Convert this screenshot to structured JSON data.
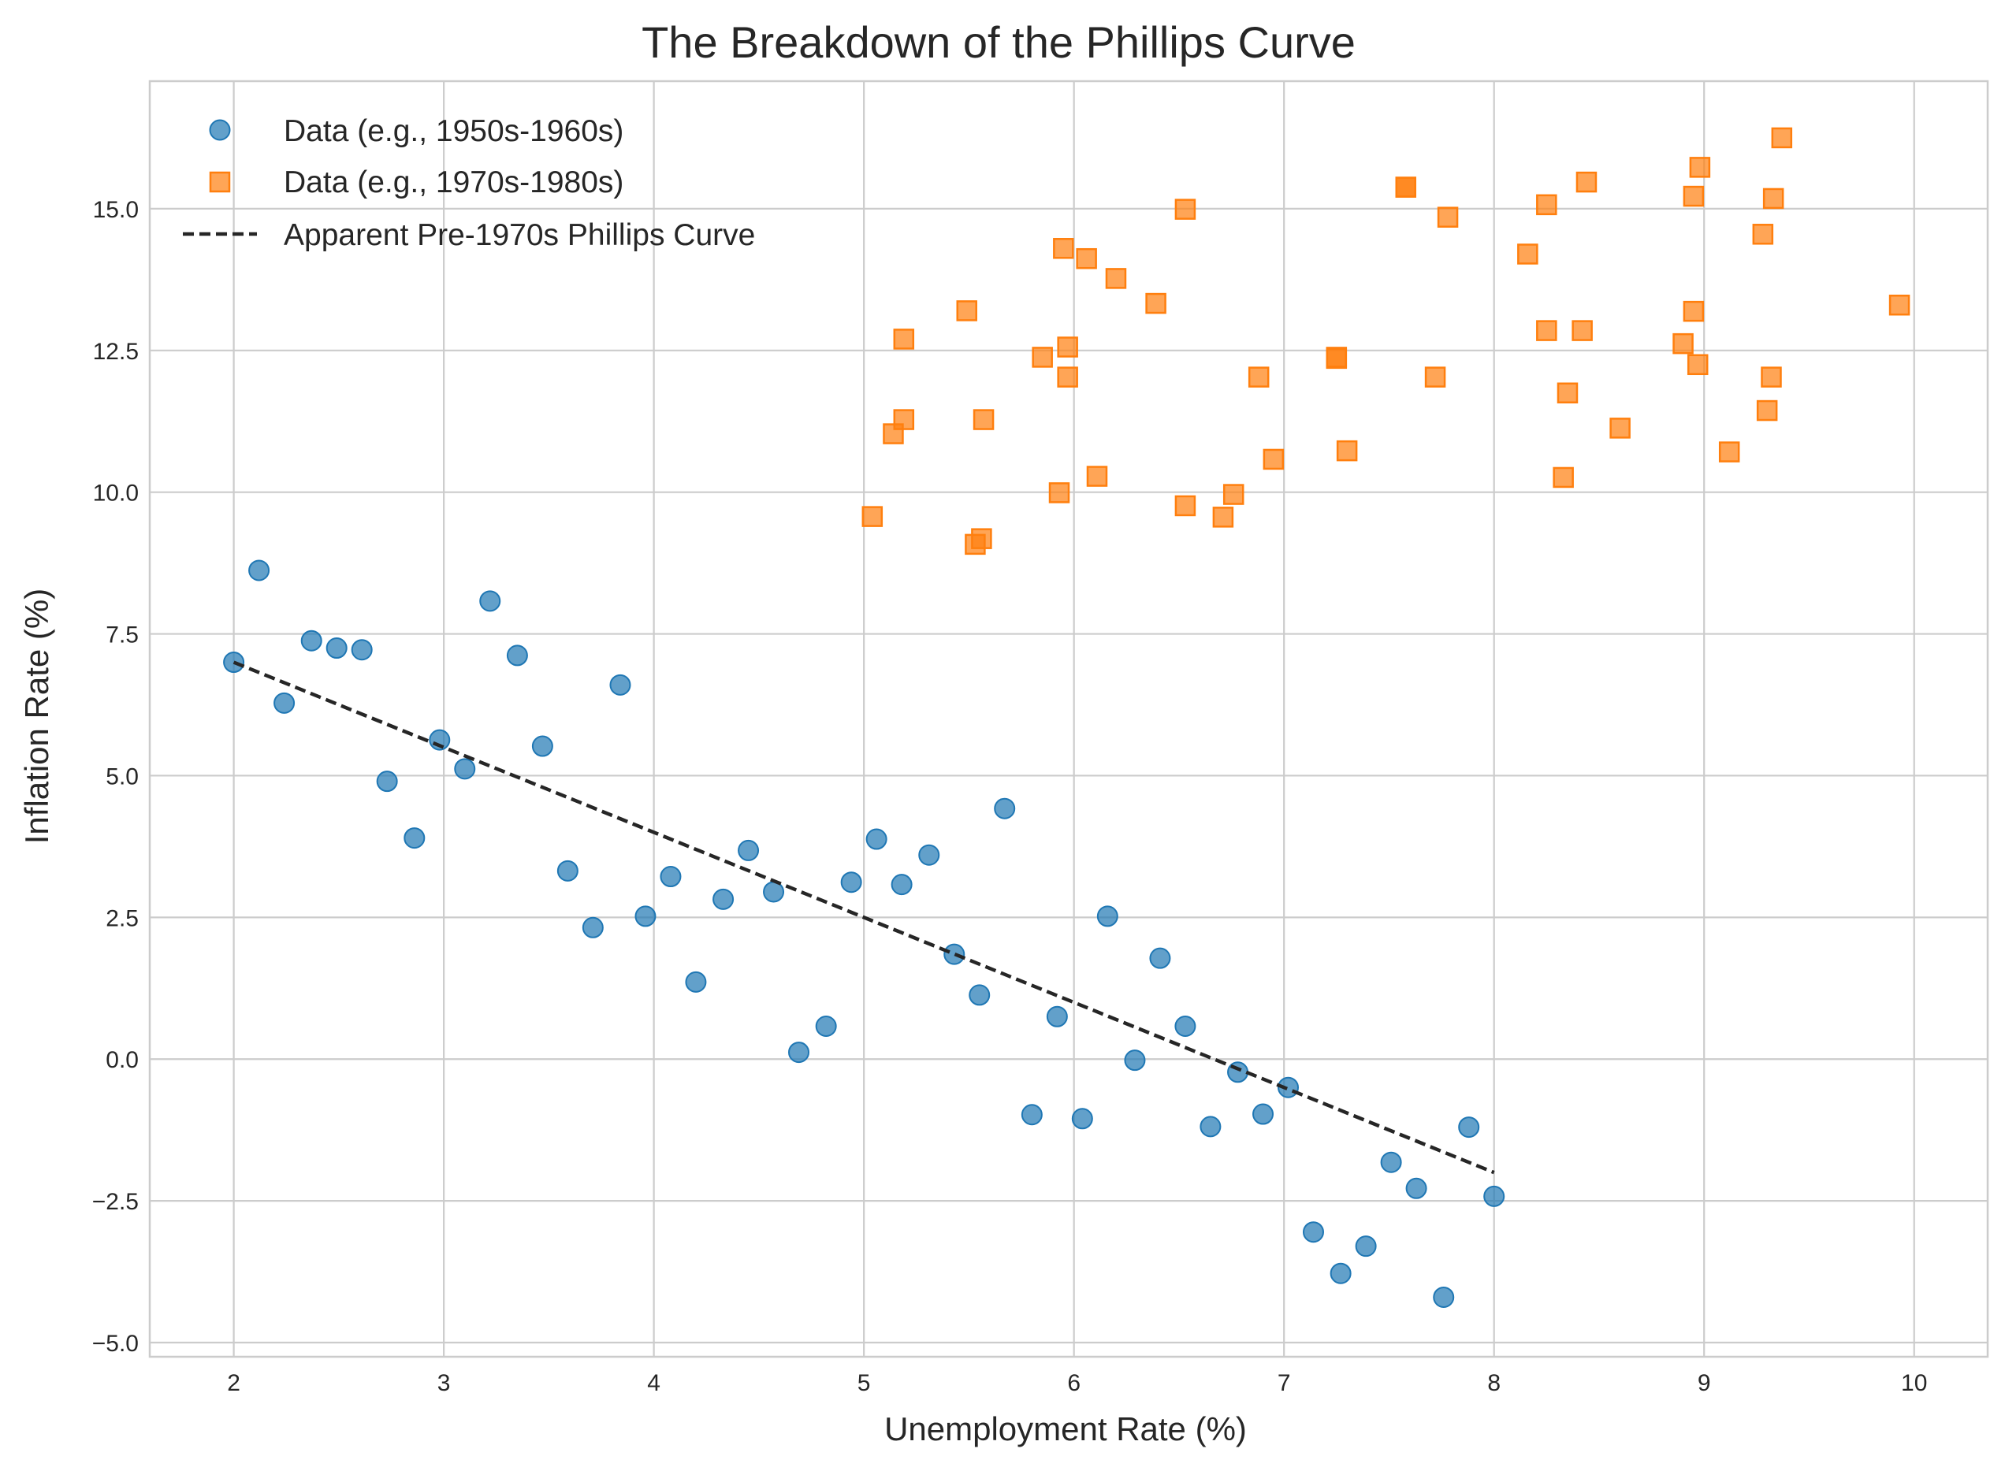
{
  "chart_data": {
    "type": "scatter",
    "title": "The Breakdown of the Phillips Curve",
    "xlabel": "Unemployment Rate (%)",
    "ylabel": "Inflation Rate (%)",
    "xlim": [
      1.6,
      10.35
    ],
    "ylim": [
      -5.25,
      17.25
    ],
    "xticks": [
      2,
      3,
      4,
      5,
      6,
      7,
      8,
      9,
      10
    ],
    "xtick_labels": [
      "2",
      "3",
      "4",
      "5",
      "6",
      "7",
      "8",
      "9",
      "10"
    ],
    "yticks": [
      -5,
      -2.5,
      0,
      2.5,
      5,
      7.5,
      10,
      12.5,
      15
    ],
    "ytick_labels": [
      "−5.0",
      "−2.5",
      "0.0",
      "2.5",
      "5.0",
      "7.5",
      "10.0",
      "12.5",
      "15.0"
    ],
    "grid": true,
    "legend_position": "upper-left",
    "series": [
      {
        "name": "Data (e.g., 1950s-1960s)",
        "marker": "circle",
        "color": "#1f77b4",
        "points": [
          [
            2.0,
            7.0
          ],
          [
            2.12,
            8.62
          ],
          [
            2.24,
            6.28
          ],
          [
            2.37,
            7.38
          ],
          [
            2.49,
            7.25
          ],
          [
            2.61,
            7.22
          ],
          [
            2.73,
            4.9
          ],
          [
            2.86,
            3.9
          ],
          [
            2.98,
            5.63
          ],
          [
            3.1,
            5.12
          ],
          [
            3.22,
            8.08
          ],
          [
            3.35,
            7.12
          ],
          [
            3.47,
            5.52
          ],
          [
            3.59,
            3.32
          ],
          [
            3.71,
            2.32
          ],
          [
            3.84,
            6.6
          ],
          [
            3.96,
            2.52
          ],
          [
            4.08,
            3.22
          ],
          [
            4.2,
            1.36
          ],
          [
            4.33,
            2.82
          ],
          [
            4.45,
            3.68
          ],
          [
            4.57,
            2.95
          ],
          [
            4.69,
            0.12
          ],
          [
            4.82,
            0.58
          ],
          [
            4.94,
            3.12
          ],
          [
            5.06,
            3.88
          ],
          [
            5.18,
            3.08
          ],
          [
            5.31,
            3.6
          ],
          [
            5.43,
            1.85
          ],
          [
            5.55,
            1.13
          ],
          [
            5.67,
            4.42
          ],
          [
            5.8,
            -0.98
          ],
          [
            5.92,
            0.75
          ],
          [
            6.04,
            -1.05
          ],
          [
            6.16,
            2.52
          ],
          [
            6.29,
            -0.02
          ],
          [
            6.41,
            1.78
          ],
          [
            6.53,
            0.58
          ],
          [
            6.65,
            -1.19
          ],
          [
            6.78,
            -0.23
          ],
          [
            6.9,
            -0.97
          ],
          [
            7.02,
            -0.5
          ],
          [
            7.14,
            -3.05
          ],
          [
            7.27,
            -3.78
          ],
          [
            7.39,
            -3.3
          ],
          [
            7.51,
            -1.82
          ],
          [
            7.63,
            -2.28
          ],
          [
            7.76,
            -4.2
          ],
          [
            7.88,
            -1.2
          ],
          [
            8.0,
            -2.42
          ]
        ]
      },
      {
        "name": "Data (e.g., 1970s-1980s)",
        "marker": "square",
        "color": "#ff7f0e",
        "points": [
          [
            5.04,
            9.57
          ],
          [
            5.14,
            11.03
          ],
          [
            5.19,
            11.28
          ],
          [
            5.19,
            12.7
          ],
          [
            5.49,
            13.2
          ],
          [
            5.53,
            9.08
          ],
          [
            5.56,
            9.18
          ],
          [
            5.57,
            11.28
          ],
          [
            5.85,
            12.38
          ],
          [
            5.93,
            9.99
          ],
          [
            5.95,
            14.3
          ],
          [
            5.97,
            12.03
          ],
          [
            5.97,
            12.56
          ],
          [
            6.06,
            14.12
          ],
          [
            6.11,
            10.28
          ],
          [
            6.2,
            13.77
          ],
          [
            6.39,
            13.33
          ],
          [
            6.53,
            9.76
          ],
          [
            6.53,
            14.99
          ],
          [
            6.71,
            9.56
          ],
          [
            6.76,
            9.96
          ],
          [
            6.88,
            12.03
          ],
          [
            6.95,
            10.58
          ],
          [
            7.25,
            12.36
          ],
          [
            7.25,
            12.38
          ],
          [
            7.3,
            10.73
          ],
          [
            7.58,
            15.38
          ],
          [
            7.58,
            15.38
          ],
          [
            7.72,
            12.03
          ],
          [
            7.78,
            14.85
          ],
          [
            8.16,
            14.2
          ],
          [
            8.25,
            15.07
          ],
          [
            8.25,
            12.85
          ],
          [
            8.33,
            10.26
          ],
          [
            8.35,
            11.75
          ],
          [
            8.42,
            12.85
          ],
          [
            8.44,
            15.47
          ],
          [
            8.6,
            11.13
          ],
          [
            8.9,
            12.62
          ],
          [
            8.95,
            13.19
          ],
          [
            8.95,
            15.22
          ],
          [
            8.97,
            12.25
          ],
          [
            8.98,
            15.73
          ],
          [
            9.12,
            10.71
          ],
          [
            9.28,
            14.55
          ],
          [
            9.3,
            11.44
          ],
          [
            9.32,
            12.03
          ],
          [
            9.33,
            15.18
          ],
          [
            9.37,
            16.25
          ],
          [
            9.93,
            13.3
          ]
        ]
      },
      {
        "name": "Apparent Pre-1970s Phillips Curve",
        "marker": "dashed-line",
        "color": "#262626",
        "points": [
          [
            2.0,
            7.0
          ],
          [
            8.0,
            -2.0
          ]
        ]
      }
    ]
  }
}
